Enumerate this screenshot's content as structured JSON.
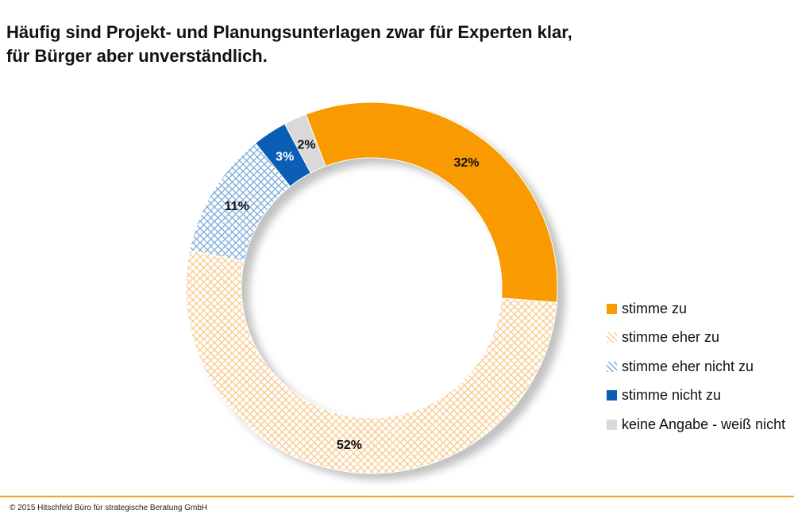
{
  "title_line1": "Häufig sind Projekt- und Planungsunterlagen zwar für Experten klar,",
  "title_line2": "für Bürger aber unverständlich.",
  "footer": "© 2015 Hitschfeld Büro für strategische Beratung GmbH",
  "chart_data": {
    "type": "donut",
    "title": "Häufig sind Projekt- und Planungsunterlagen zwar für Experten klar, für Bürger aber unverständlich.",
    "legend_position": "right",
    "categories": [
      "stimme zu",
      "stimme eher zu",
      "stimme eher nicht zu",
      "stimme nicht zu",
      "keine Angabe - weiß nicht"
    ],
    "values": [
      32,
      52,
      11,
      3,
      2
    ],
    "labels": [
      "32%",
      "52%",
      "11%",
      "3%",
      "2%"
    ],
    "colors": [
      "#f99b00",
      "#f9c98a",
      "#7aa9d8",
      "#0a5fb4",
      "#d9d9d9"
    ],
    "fills": [
      "solid",
      "crosshatch",
      "crosshatch",
      "solid",
      "solid"
    ]
  }
}
